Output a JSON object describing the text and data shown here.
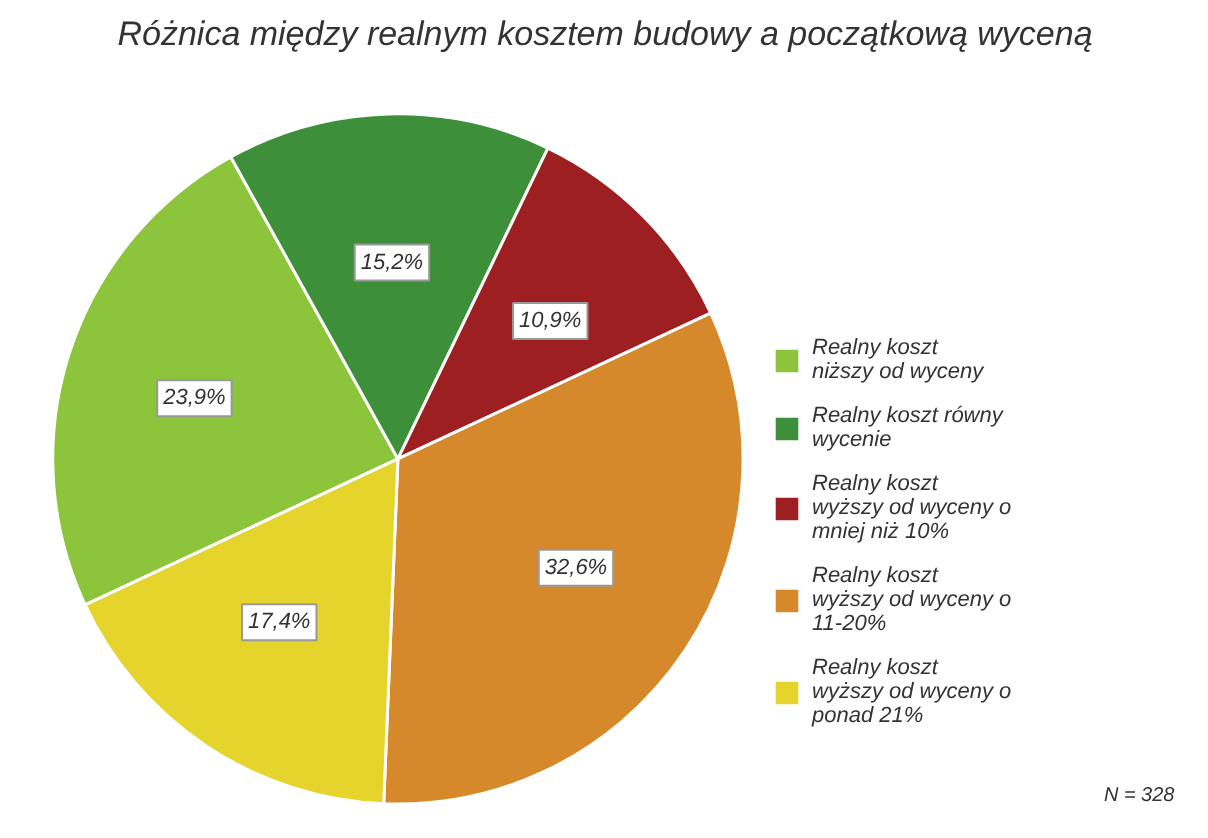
{
  "chart_data": {
    "type": "pie",
    "title": "Różnica między realnym kosztem budowy a początkową wyceną",
    "categories": [
      "Realny koszt niższy od wyceny",
      "Realny koszt równy wycenie",
      "Realny koszt wyższy od wyceny o mniej niż 10%",
      "Realny koszt wyższy od wyceny o 11-20%",
      "Realny koszt wyższy od wyceny o ponad 21%"
    ],
    "values": [
      23.9,
      15.2,
      10.9,
      32.6,
      17.4
    ],
    "value_labels": [
      "23,9%",
      "15,2%",
      "10,9%",
      "32,6%",
      "17,4%"
    ],
    "colors": [
      "#8cc43c",
      "#3d8f3a",
      "#9e1f22",
      "#d6892a",
      "#e4d42c"
    ],
    "legend": "right",
    "annotations": [
      "N = 328"
    ]
  }
}
